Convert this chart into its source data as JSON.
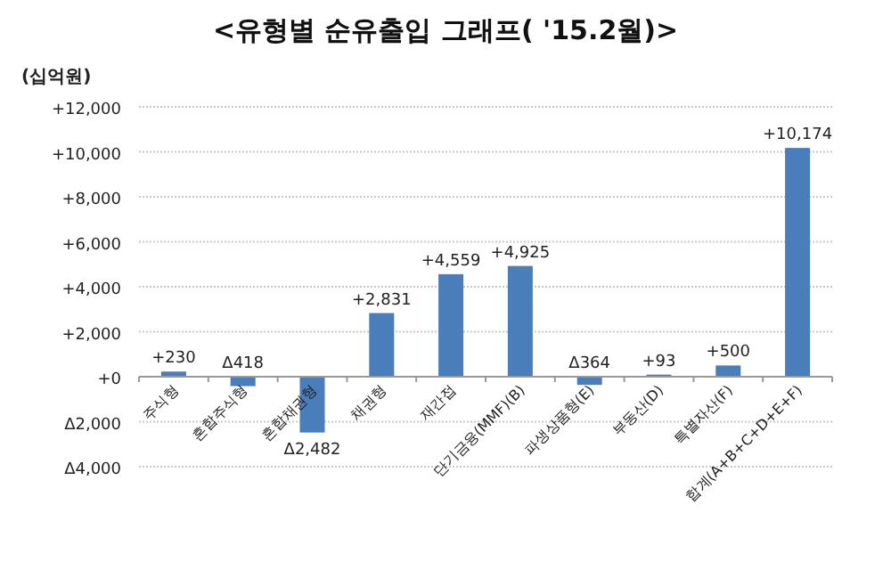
{
  "chart_data": {
    "type": "bar",
    "title": "<유형별 순유출입 그래프( '15.2월)>",
    "ylabel": "(십억원)",
    "categories": [
      "주식형",
      "혼합주식형",
      "혼합채권형",
      "채권형",
      "재간접",
      "단기금융(MMF)(B)",
      "파생상품형(E)",
      "부동산(D)",
      "특별자산(F)",
      "합계(A+B+C+D+E+F)"
    ],
    "values": [
      230,
      -418,
      -2482,
      2831,
      4559,
      4925,
      -364,
      93,
      500,
      10174
    ],
    "value_labels": [
      "+230",
      "Δ418",
      "Δ2,482",
      "+2,831",
      "+4,559",
      "+4,925",
      "Δ364",
      "+93",
      "+500",
      "+10,174"
    ],
    "color": "#4a7ebb",
    "ylim": [
      -4000,
      12000
    ],
    "yticks": [
      {
        "value": -4000,
        "label": "Δ4,000"
      },
      {
        "value": -2000,
        "label": "Δ2,000"
      },
      {
        "value": 0,
        "label": "+0"
      },
      {
        "value": 2000,
        "label": "+2,000"
      },
      {
        "value": 4000,
        "label": "+4,000"
      },
      {
        "value": 6000,
        "label": "+6,000"
      },
      {
        "value": 8000,
        "label": "+8,000"
      },
      {
        "value": 10000,
        "label": "+10,000"
      },
      {
        "value": 12000,
        "label": "+12,000"
      }
    ],
    "grid": "y"
  }
}
